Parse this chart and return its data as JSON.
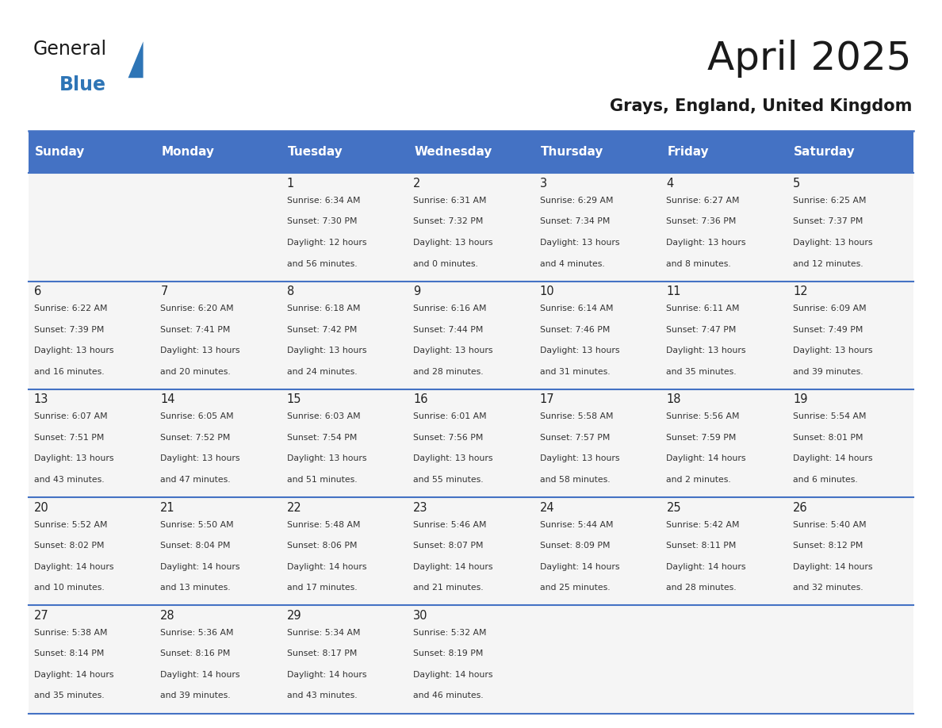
{
  "title": "April 2025",
  "subtitle": "Grays, England, United Kingdom",
  "header_bg_color": "#4472C4",
  "header_text_color": "#FFFFFF",
  "cell_bg_color": "#F5F5F5",
  "border_color": "#4472C4",
  "text_color": "#333333",
  "days_of_week": [
    "Sunday",
    "Monday",
    "Tuesday",
    "Wednesday",
    "Thursday",
    "Friday",
    "Saturday"
  ],
  "calendar_data": [
    [
      {
        "day": "",
        "sunrise": "",
        "sunset": "",
        "daylight": ""
      },
      {
        "day": "",
        "sunrise": "",
        "sunset": "",
        "daylight": ""
      },
      {
        "day": "1",
        "sunrise": "Sunrise: 6:34 AM",
        "sunset": "Sunset: 7:30 PM",
        "daylight": "Daylight: 12 hours\nand 56 minutes."
      },
      {
        "day": "2",
        "sunrise": "Sunrise: 6:31 AM",
        "sunset": "Sunset: 7:32 PM",
        "daylight": "Daylight: 13 hours\nand 0 minutes."
      },
      {
        "day": "3",
        "sunrise": "Sunrise: 6:29 AM",
        "sunset": "Sunset: 7:34 PM",
        "daylight": "Daylight: 13 hours\nand 4 minutes."
      },
      {
        "day": "4",
        "sunrise": "Sunrise: 6:27 AM",
        "sunset": "Sunset: 7:36 PM",
        "daylight": "Daylight: 13 hours\nand 8 minutes."
      },
      {
        "day": "5",
        "sunrise": "Sunrise: 6:25 AM",
        "sunset": "Sunset: 7:37 PM",
        "daylight": "Daylight: 13 hours\nand 12 minutes."
      }
    ],
    [
      {
        "day": "6",
        "sunrise": "Sunrise: 6:22 AM",
        "sunset": "Sunset: 7:39 PM",
        "daylight": "Daylight: 13 hours\nand 16 minutes."
      },
      {
        "day": "7",
        "sunrise": "Sunrise: 6:20 AM",
        "sunset": "Sunset: 7:41 PM",
        "daylight": "Daylight: 13 hours\nand 20 minutes."
      },
      {
        "day": "8",
        "sunrise": "Sunrise: 6:18 AM",
        "sunset": "Sunset: 7:42 PM",
        "daylight": "Daylight: 13 hours\nand 24 minutes."
      },
      {
        "day": "9",
        "sunrise": "Sunrise: 6:16 AM",
        "sunset": "Sunset: 7:44 PM",
        "daylight": "Daylight: 13 hours\nand 28 minutes."
      },
      {
        "day": "10",
        "sunrise": "Sunrise: 6:14 AM",
        "sunset": "Sunset: 7:46 PM",
        "daylight": "Daylight: 13 hours\nand 31 minutes."
      },
      {
        "day": "11",
        "sunrise": "Sunrise: 6:11 AM",
        "sunset": "Sunset: 7:47 PM",
        "daylight": "Daylight: 13 hours\nand 35 minutes."
      },
      {
        "day": "12",
        "sunrise": "Sunrise: 6:09 AM",
        "sunset": "Sunset: 7:49 PM",
        "daylight": "Daylight: 13 hours\nand 39 minutes."
      }
    ],
    [
      {
        "day": "13",
        "sunrise": "Sunrise: 6:07 AM",
        "sunset": "Sunset: 7:51 PM",
        "daylight": "Daylight: 13 hours\nand 43 minutes."
      },
      {
        "day": "14",
        "sunrise": "Sunrise: 6:05 AM",
        "sunset": "Sunset: 7:52 PM",
        "daylight": "Daylight: 13 hours\nand 47 minutes."
      },
      {
        "day": "15",
        "sunrise": "Sunrise: 6:03 AM",
        "sunset": "Sunset: 7:54 PM",
        "daylight": "Daylight: 13 hours\nand 51 minutes."
      },
      {
        "day": "16",
        "sunrise": "Sunrise: 6:01 AM",
        "sunset": "Sunset: 7:56 PM",
        "daylight": "Daylight: 13 hours\nand 55 minutes."
      },
      {
        "day": "17",
        "sunrise": "Sunrise: 5:58 AM",
        "sunset": "Sunset: 7:57 PM",
        "daylight": "Daylight: 13 hours\nand 58 minutes."
      },
      {
        "day": "18",
        "sunrise": "Sunrise: 5:56 AM",
        "sunset": "Sunset: 7:59 PM",
        "daylight": "Daylight: 14 hours\nand 2 minutes."
      },
      {
        "day": "19",
        "sunrise": "Sunrise: 5:54 AM",
        "sunset": "Sunset: 8:01 PM",
        "daylight": "Daylight: 14 hours\nand 6 minutes."
      }
    ],
    [
      {
        "day": "20",
        "sunrise": "Sunrise: 5:52 AM",
        "sunset": "Sunset: 8:02 PM",
        "daylight": "Daylight: 14 hours\nand 10 minutes."
      },
      {
        "day": "21",
        "sunrise": "Sunrise: 5:50 AM",
        "sunset": "Sunset: 8:04 PM",
        "daylight": "Daylight: 14 hours\nand 13 minutes."
      },
      {
        "day": "22",
        "sunrise": "Sunrise: 5:48 AM",
        "sunset": "Sunset: 8:06 PM",
        "daylight": "Daylight: 14 hours\nand 17 minutes."
      },
      {
        "day": "23",
        "sunrise": "Sunrise: 5:46 AM",
        "sunset": "Sunset: 8:07 PM",
        "daylight": "Daylight: 14 hours\nand 21 minutes."
      },
      {
        "day": "24",
        "sunrise": "Sunrise: 5:44 AM",
        "sunset": "Sunset: 8:09 PM",
        "daylight": "Daylight: 14 hours\nand 25 minutes."
      },
      {
        "day": "25",
        "sunrise": "Sunrise: 5:42 AM",
        "sunset": "Sunset: 8:11 PM",
        "daylight": "Daylight: 14 hours\nand 28 minutes."
      },
      {
        "day": "26",
        "sunrise": "Sunrise: 5:40 AM",
        "sunset": "Sunset: 8:12 PM",
        "daylight": "Daylight: 14 hours\nand 32 minutes."
      }
    ],
    [
      {
        "day": "27",
        "sunrise": "Sunrise: 5:38 AM",
        "sunset": "Sunset: 8:14 PM",
        "daylight": "Daylight: 14 hours\nand 35 minutes."
      },
      {
        "day": "28",
        "sunrise": "Sunrise: 5:36 AM",
        "sunset": "Sunset: 8:16 PM",
        "daylight": "Daylight: 14 hours\nand 39 minutes."
      },
      {
        "day": "29",
        "sunrise": "Sunrise: 5:34 AM",
        "sunset": "Sunset: 8:17 PM",
        "daylight": "Daylight: 14 hours\nand 43 minutes."
      },
      {
        "day": "30",
        "sunrise": "Sunrise: 5:32 AM",
        "sunset": "Sunset: 8:19 PM",
        "daylight": "Daylight: 14 hours\nand 46 minutes."
      },
      {
        "day": "",
        "sunrise": "",
        "sunset": "",
        "daylight": ""
      },
      {
        "day": "",
        "sunrise": "",
        "sunset": "",
        "daylight": ""
      },
      {
        "day": "",
        "sunrise": "",
        "sunset": "",
        "daylight": ""
      }
    ]
  ]
}
